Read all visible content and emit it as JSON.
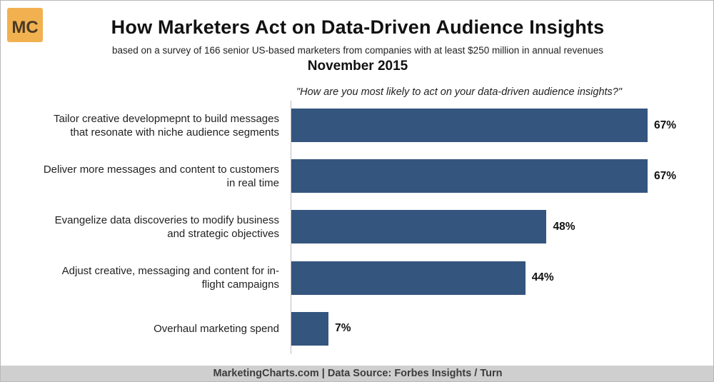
{
  "brand": {
    "logo_text": "MC",
    "logo_color": "#f2b150"
  },
  "chart_data": {
    "type": "bar",
    "orientation": "horizontal",
    "title": "How Marketers Act on Data-Driven Audience Insights",
    "subtitle": "based on a survey of 166 senior US-based marketers from companies with at least $250 million in annual revenues",
    "date": "November 2015",
    "question": "\"How are you most likely to act on your data-driven audience insights?\"",
    "categories": [
      [
        "Tailor creative developmepnt to build messages",
        "that resonate with niche audience segments"
      ],
      [
        "Deliver more messages and content to customers",
        "in real time"
      ],
      [
        "Evangelize data discoveries to modify business",
        "and strategic objectives"
      ],
      [
        "Adjust creative, messaging and content for in-",
        "flight campaigns"
      ],
      [
        "Overhaul marketing spend"
      ]
    ],
    "values": [
      67,
      67,
      48,
      44,
      7
    ],
    "value_labels": [
      "67%",
      "67%",
      "48%",
      "44%",
      "7%"
    ],
    "unit": "%",
    "xlim": [
      0,
      67
    ],
    "bar_color": "#34557e"
  },
  "footer": {
    "text": "MarketingCharts.com | Data Source: Forbes Insights / Turn"
  }
}
